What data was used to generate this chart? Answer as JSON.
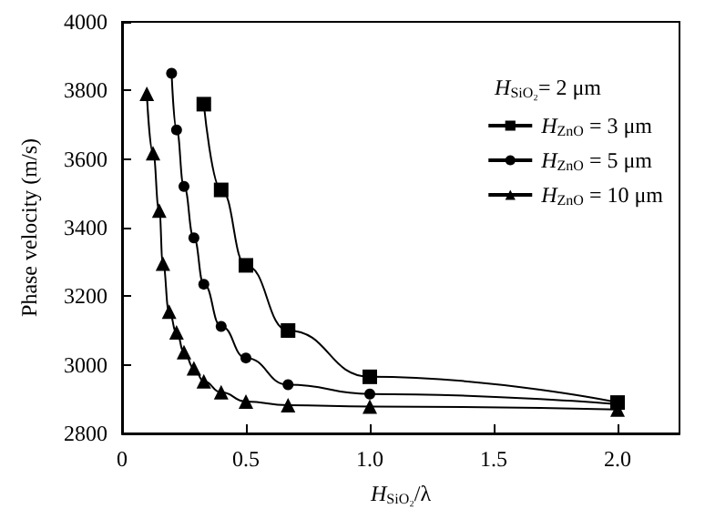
{
  "chart_data": {
    "type": "line",
    "xlabel": "H$_{SiO₂}$/λ",
    "ylabel": "Phase velocity (m/s)",
    "legend_title": "H$_{SiO₂}$= 2 μm",
    "series": [
      {
        "name": "H$_{ZnO}$ = 3 μm",
        "color": "#000000",
        "marker": "square",
        "x": [
          0.33,
          0.4,
          0.5,
          0.67,
          1.0,
          2.0
        ],
        "values": [
          3760,
          3510,
          3290,
          3100,
          2965,
          2890
        ]
      },
      {
        "name": "H$_{ZnO}$ = 5 μm",
        "color": "#000000",
        "marker": "circle",
        "x": [
          0.2,
          0.22,
          0.25,
          0.29,
          0.33,
          0.4,
          0.5,
          0.67,
          1.0,
          2.0
        ],
        "values": [
          3850,
          3685,
          3520,
          3370,
          3235,
          3112,
          3020,
          2942,
          2915,
          2885
        ]
      },
      {
        "name": "H$_{ZnO}$ = 10 μm",
        "color": "#000000",
        "marker": "triangle",
        "x": [
          0.1,
          0.125,
          0.15,
          0.165,
          0.19,
          0.22,
          0.25,
          0.29,
          0.33,
          0.4,
          0.5,
          0.67,
          1.0,
          2.0
        ],
        "values": [
          3790,
          3617,
          3450,
          3295,
          3155,
          3095,
          3037,
          2990,
          2952,
          2920,
          2893,
          2882,
          2878,
          2870
        ]
      }
    ],
    "xlim": [
      0,
      2.25
    ],
    "xticks": [
      0,
      0.5,
      {
        "value": 1,
        "label": "1.0"
      },
      1.5,
      {
        "value": 2,
        "label": "2.0"
      }
    ],
    "ylim": [
      2800,
      4000
    ],
    "yticks": [
      2800,
      3000,
      3200,
      3400,
      3600,
      3800,
      4000
    ],
    "grid": false,
    "legend": "top right"
  }
}
